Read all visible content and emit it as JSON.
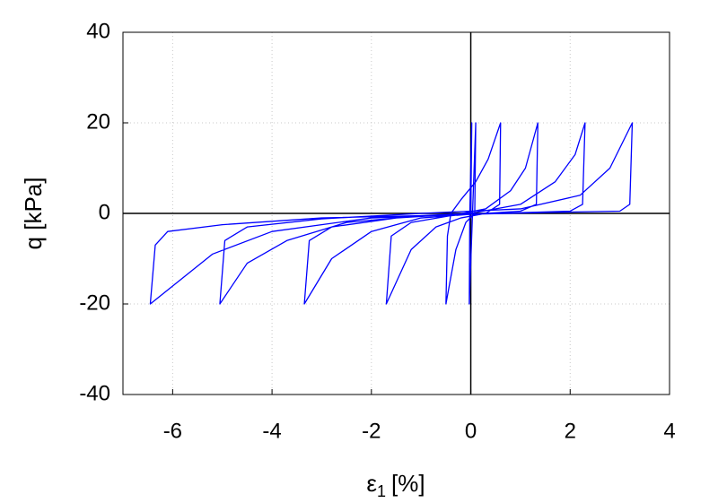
{
  "chart_data": {
    "type": "line",
    "xlabel": {
      "symbol": "ε",
      "subscript": "1",
      "unit": "[%]"
    },
    "ylabel": "q [kPa]",
    "xlim": [
      -7,
      4
    ],
    "ylim": [
      -40,
      40
    ],
    "xticks": [
      -6,
      -4,
      -2,
      0,
      2,
      4
    ],
    "yticks": [
      -40,
      -20,
      0,
      20,
      40
    ],
    "grid": true,
    "x": [
      0,
      0.02,
      -0.02,
      -0.03,
      0.1,
      0.08,
      -0.1,
      -0.3,
      -0.5,
      -0.47,
      -0.4,
      -0.2,
      0.1,
      0.35,
      0.6,
      0.58,
      0.3,
      -0.2,
      -0.7,
      -1.2,
      -1.7,
      -1.6,
      -1.2,
      -0.4,
      0.3,
      0.8,
      1.1,
      1.35,
      1.32,
      1,
      0,
      -1,
      -2,
      -2.8,
      -3.35,
      -3.25,
      -2.8,
      -1.5,
      0,
      1,
      1.7,
      2.1,
      2.3,
      2.25,
      2,
      0.5,
      -1,
      -2.5,
      -3.7,
      -4.5,
      -5.05,
      -4.95,
      -4.5,
      -3,
      -1,
      1,
      2.2,
      2.8,
      3.25,
      3.2,
      3,
      1.5,
      0,
      -2,
      -4,
      -5.2,
      -6.45,
      -6.35,
      -6.1,
      -5,
      -3,
      -1,
      0
    ],
    "series": [
      {
        "color": "#0000ff",
        "values": [
          0,
          20,
          0,
          -20,
          20,
          0,
          -2,
          -8,
          -20,
          -5,
          0,
          3,
          7,
          12,
          20,
          2,
          0,
          -1,
          -3,
          -8,
          -20,
          -5,
          -2,
          -0.5,
          1,
          5,
          10,
          20,
          2,
          0.5,
          -0.2,
          -1,
          -4,
          -10,
          -20,
          -6,
          -3,
          -1,
          0,
          2,
          7,
          13,
          20,
          2,
          0.5,
          0,
          -0.5,
          -2,
          -6,
          -11,
          -20,
          -6,
          -3,
          -1.2,
          0,
          1,
          4,
          10,
          20,
          2,
          0.5,
          0.2,
          -0.2,
          -1,
          -4,
          -9,
          -20,
          -7,
          -4,
          -2.5,
          -1,
          -0.5,
          0
        ]
      }
    ]
  }
}
